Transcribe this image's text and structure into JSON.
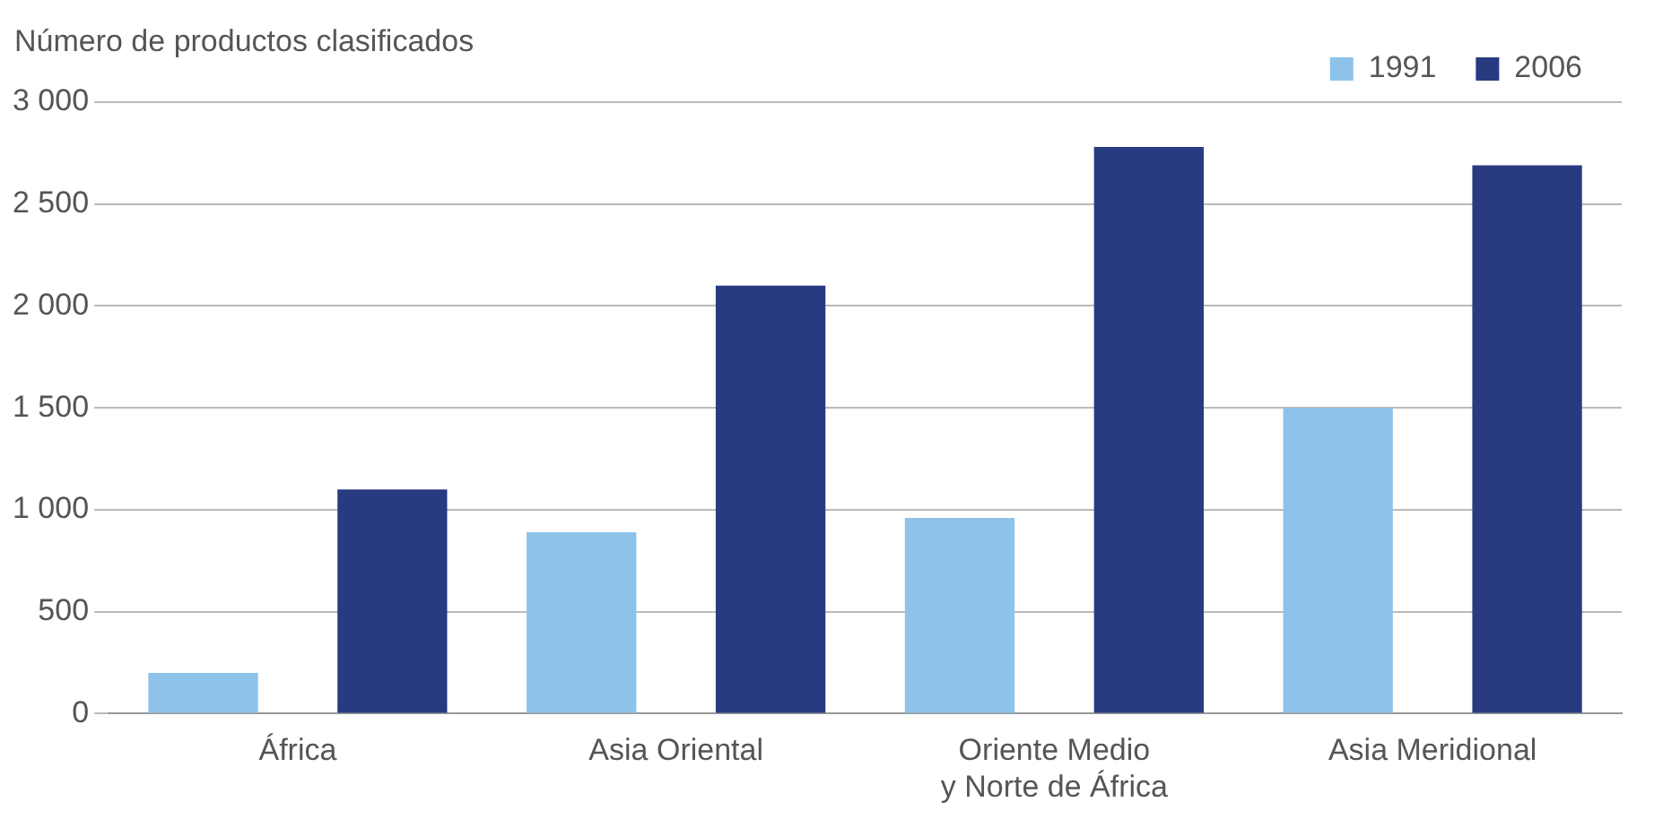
{
  "chart_data": {
    "type": "bar",
    "ylabel": "Número de productos clasificados",
    "categories": [
      "África",
      "Asia Oriental",
      "Oriente Medio\ny Norte de África",
      "Asia Meridional"
    ],
    "series": [
      {
        "name": "1991",
        "color": "#8dc3ea",
        "values": [
          200,
          890,
          960,
          1500
        ]
      },
      {
        "name": "2006",
        "color": "#283a80",
        "values": [
          1100,
          2100,
          2780,
          2690
        ]
      }
    ],
    "ylim": [
      0,
      3000
    ],
    "yticks": [
      {
        "value": 0,
        "label": "0"
      },
      {
        "value": 500,
        "label": "500"
      },
      {
        "value": 1000,
        "label": "1 000"
      },
      {
        "value": 1500,
        "label": "1 500"
      },
      {
        "value": 2000,
        "label": "2 000"
      },
      {
        "value": 2500,
        "label": "2 500"
      },
      {
        "value": 3000,
        "label": "3 000"
      }
    ],
    "grid": "y",
    "legend": "top right"
  }
}
